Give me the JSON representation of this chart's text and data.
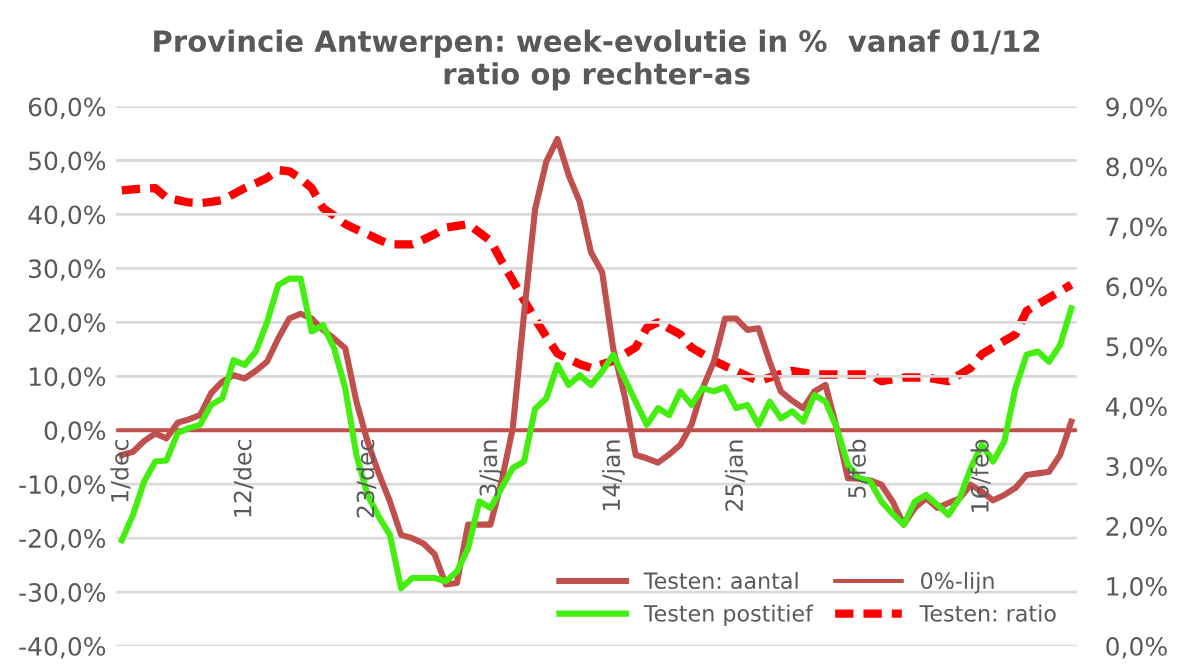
{
  "chart_data": {
    "type": "line",
    "title": "Provincie Antwerpen: week-evolutie in %  vanaf 01/12\nratio op rechter-as",
    "categories": [
      "1/dec",
      null,
      null,
      null,
      null,
      null,
      null,
      null,
      null,
      null,
      null,
      "12/dec",
      null,
      null,
      null,
      null,
      null,
      null,
      null,
      null,
      null,
      null,
      "23/dec",
      null,
      null,
      null,
      null,
      null,
      null,
      null,
      null,
      null,
      null,
      "3/jan",
      null,
      null,
      null,
      null,
      null,
      null,
      null,
      null,
      null,
      null,
      "14/jan",
      null,
      null,
      null,
      null,
      null,
      null,
      null,
      null,
      null,
      null,
      "25/jan",
      null,
      null,
      null,
      null,
      null,
      null,
      null,
      null,
      null,
      null,
      "5/feb",
      null,
      null,
      null,
      null,
      null,
      null,
      null,
      null,
      null,
      null,
      "16/feb",
      null,
      null,
      null,
      null,
      null,
      null,
      null,
      null
    ],
    "ylim": [
      -40,
      60
    ],
    "yticks": [
      {
        "value": -40,
        "label": "-40,0%"
      },
      {
        "value": -30,
        "label": "-30,0%"
      },
      {
        "value": -20,
        "label": "-20,0%"
      },
      {
        "value": -10,
        "label": "-10,0%"
      },
      {
        "value": 0,
        "label": "0,0%"
      },
      {
        "value": 10,
        "label": "10,0%"
      },
      {
        "value": 20,
        "label": "20,0%"
      },
      {
        "value": 30,
        "label": "30,0%"
      },
      {
        "value": 40,
        "label": "40,0%"
      },
      {
        "value": 50,
        "label": "50,0%"
      },
      {
        "value": 60,
        "label": "60,0%"
      }
    ],
    "y2lim": [
      0,
      9
    ],
    "y2ticks": [
      {
        "value": 0,
        "label": "0,0%"
      },
      {
        "value": 1,
        "label": "1,0%"
      },
      {
        "value": 2,
        "label": "2,0%"
      },
      {
        "value": 3,
        "label": "3,0%"
      },
      {
        "value": 4,
        "label": "4,0%"
      },
      {
        "value": 5,
        "label": "5,0%"
      },
      {
        "value": 6,
        "label": "6,0%"
      },
      {
        "value": 7,
        "label": "7,0%"
      },
      {
        "value": 8,
        "label": "8,0%"
      },
      {
        "value": 9,
        "label": "9,0%"
      }
    ],
    "grid": "y",
    "legend": "bottom right",
    "marker": "none",
    "ref_lines": [
      {
        "axis": "y",
        "value": 0,
        "label": "0%-lijn",
        "color": "#c0504d"
      }
    ],
    "series": [
      {
        "name": "Testen: aantal",
        "color": "#c0504d",
        "line_style": "solid",
        "values": [
          -4.6,
          -4,
          -2,
          -0.6,
          -1.5,
          1.4,
          2,
          2.8,
          6.9,
          9,
          10.2,
          9.6,
          11,
          12.7,
          17,
          20.7,
          21.6,
          20.7,
          18.6,
          17,
          15.2,
          5.3,
          -2.1,
          -8,
          -13.2,
          -19.4,
          -20,
          -21,
          -23,
          -28.6,
          -28.3,
          -17.5,
          -17.5,
          -17.5,
          -9.5,
          0.4,
          21.4,
          41,
          49.8,
          54,
          47.3,
          42.3,
          33,
          29.3,
          15,
          6.5,
          -4.6,
          -5.2,
          -6,
          -4.5,
          -2.7,
          1,
          7.8,
          12.7,
          20.7,
          20.7,
          18.6,
          18.9,
          12.7,
          7.2,
          5.5,
          4.1,
          7.2,
          8.4,
          0.4,
          -8.9,
          -9,
          -9.3,
          -10.1,
          -13.2,
          -17.5,
          -14.4,
          -12.6,
          -14.4,
          -13.5,
          -12.6,
          -10.1,
          -11.4,
          -13,
          -12,
          -10.7,
          -8.3,
          -8,
          -7.7,
          -4.6,
          1.6
        ]
      },
      {
        "name": "Testen postitief",
        "color": "#44ee11",
        "line_style": "solid",
        "values": [
          -20.4,
          -15.7,
          -9.5,
          -5.8,
          -5.6,
          -0.5,
          0.4,
          1,
          4.7,
          5.9,
          13,
          12.1,
          14.6,
          20,
          26.9,
          28.1,
          28.1,
          18.3,
          19.5,
          15.2,
          7.8,
          -4.6,
          -12,
          -16,
          -19.4,
          -29.3,
          -27.4,
          -27.4,
          -27.4,
          -28,
          -26.2,
          -21.9,
          -13.2,
          -14.4,
          -10.7,
          -7,
          -5.8,
          4,
          5.9,
          12.1,
          8.4,
          10.2,
          8.4,
          10.9,
          14,
          9.6,
          5.3,
          1,
          4.1,
          2.8,
          7.2,
          4.7,
          7.8,
          7.2,
          8,
          4.1,
          4.7,
          1,
          5.3,
          2.2,
          3.5,
          1.6,
          6.5,
          5.3,
          0.4,
          -6.4,
          -8.9,
          -9.5,
          -13.2,
          -15.5,
          -17.5,
          -13.2,
          -12,
          -13.8,
          -15.7,
          -12.6,
          -7,
          -2.7,
          -5.8,
          -2.1,
          7.8,
          14,
          14.6,
          12.7,
          15.8,
          22.6
        ]
      },
      {
        "name": "Testen: ratio",
        "color": "#ff0000",
        "line_style": "dashed",
        "axis": "y2",
        "values": [
          7.6,
          7.62,
          7.63,
          7.64,
          7.48,
          7.44,
          7.4,
          7.39,
          7.41,
          7.44,
          7.54,
          7.64,
          7.72,
          7.81,
          7.94,
          7.92,
          7.8,
          7.64,
          7.31,
          7.18,
          7.04,
          6.95,
          6.87,
          6.78,
          6.7,
          6.7,
          6.7,
          6.78,
          6.87,
          6.98,
          7.01,
          7.04,
          6.9,
          6.76,
          6.42,
          6.1,
          5.77,
          5.46,
          5.16,
          4.88,
          4.79,
          4.7,
          4.64,
          4.7,
          4.76,
          4.87,
          4.98,
          5.31,
          5.4,
          5.3,
          5.2,
          4.98,
          4.87,
          4.76,
          4.67,
          4.59,
          4.5,
          4.42,
          4.48,
          4.54,
          4.59,
          4.56,
          4.53,
          4.53,
          4.53,
          4.53,
          4.53,
          4.53,
          4.42,
          4.45,
          4.48,
          4.48,
          4.48,
          4.45,
          4.42,
          4.53,
          4.64,
          4.87,
          4.98,
          5.09,
          5.2,
          5.59,
          5.7,
          5.81,
          5.92,
          6.03
        ]
      }
    ]
  }
}
